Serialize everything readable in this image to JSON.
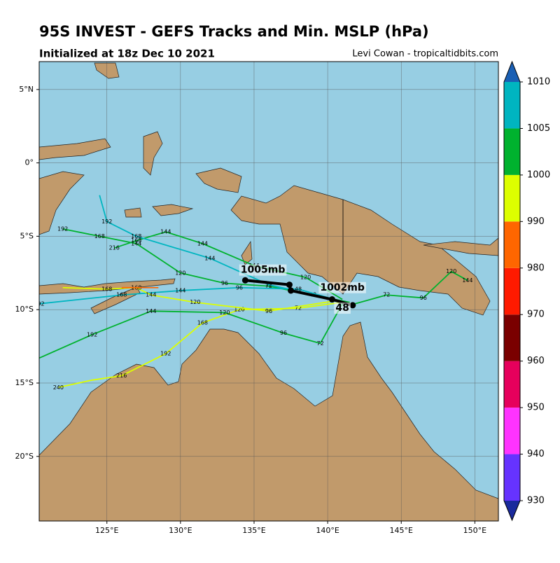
{
  "chart_data": {
    "type": "map",
    "title": "95S INVEST - GEFS Tracks and Min. MSLP (hPa)",
    "subtitle": "Initialized at 18z Dec 10 2021",
    "credit": "Levi Cowan - tropicaltidbits.com",
    "xlim": [
      120.4,
      151.6
    ],
    "ylim": [
      -24.4,
      6.9
    ],
    "xticks": [
      {
        "value": 125,
        "label": "125°E"
      },
      {
        "value": 130,
        "label": "130°E"
      },
      {
        "value": 135,
        "label": "135°E"
      },
      {
        "value": 140,
        "label": "140°E"
      },
      {
        "value": 145,
        "label": "145°E"
      },
      {
        "value": 150,
        "label": "150°E"
      }
    ],
    "yticks": [
      {
        "value": 5,
        "label": "5°N"
      },
      {
        "value": 0,
        "label": "0°"
      },
      {
        "value": -5,
        "label": "5°S"
      },
      {
        "value": -10,
        "label": "10°S"
      },
      {
        "value": -15,
        "label": "15°S"
      },
      {
        "value": -20,
        "label": "20°S"
      }
    ],
    "grid": true,
    "colorbar": {
      "ticks": [
        930,
        940,
        950,
        960,
        970,
        980,
        990,
        1000,
        1005,
        1010
      ],
      "colors": [
        "#6633ff",
        "#ff33ff",
        "#e6005c",
        "#7a0000",
        "#ff1a00",
        "#ff6600",
        "#ddff00",
        "#00b22e",
        "#00b5c0"
      ],
      "extend_colors": [
        "#1a2a9c",
        "#1a5fb4"
      ]
    },
    "series": [
      {
        "color": "#00b22e",
        "x": [
          141.5,
          139,
          136,
          133,
          130,
          127,
          124.5,
          122
        ],
        "values": [
          -9.5,
          -9,
          -8.4,
          -8.2,
          -7.5,
          -5.5,
          -5,
          -4.5
        ],
        "labels": [
          null,
          "48",
          "72",
          "96",
          "120",
          "144",
          "168",
          "192"
        ]
      },
      {
        "color": "#00b5c0",
        "x": [
          141.5,
          138,
          134,
          130,
          126,
          120.4
        ],
        "values": [
          -9.6,
          -8.6,
          -8.5,
          -8.7,
          -9,
          -9.6
        ],
        "labels": [
          null,
          "48",
          "96",
          "144",
          "168",
          "192"
        ]
      },
      {
        "color": "#ddff00",
        "x": [
          141,
          138,
          134,
          131.5,
          129,
          126,
          124,
          121.7
        ],
        "values": [
          -9.5,
          -9.9,
          -10,
          -10.9,
          -13,
          -14.5,
          -14.8,
          -15.3
        ],
        "labels": [
          null,
          "72",
          "120",
          "168",
          "192",
          "216",
          null,
          "240"
        ]
      },
      {
        "color": "#00b22e",
        "x": [
          141,
          139.5,
          137,
          133,
          128,
          124,
          120.4
        ],
        "values": [
          -9.6,
          -12.3,
          -11.6,
          -10.2,
          -10.1,
          -11.7,
          -13.3
        ],
        "labels": [
          null,
          "72",
          "96",
          "120",
          "144",
          "192",
          null
        ]
      },
      {
        "color": "#00b22e",
        "x": [
          141.5,
          144,
          146.5,
          148.4,
          149.5
        ],
        "values": [
          -9.7,
          -9,
          -9.2,
          -7.4,
          -8
        ],
        "labels": [
          null,
          "72",
          "96",
          "120",
          "144"
        ]
      },
      {
        "color": "#00b22e",
        "x": [
          141,
          138.5,
          135,
          131.5,
          129,
          127,
          125.5
        ],
        "values": [
          -9.3,
          -7.8,
          -7,
          -5.5,
          -4.7,
          -5.3,
          -5.8
        ],
        "labels": [
          null,
          "120",
          "144",
          "144",
          "144",
          "168",
          "216"
        ]
      },
      {
        "color": "#00b5c0",
        "x": [
          140,
          136,
          132,
          127,
          125,
          124.5
        ],
        "values": [
          -9.2,
          -8.3,
          -6.5,
          -5,
          -4,
          -2.2
        ],
        "labels": [
          null,
          "72",
          "144",
          "168",
          "192",
          null
        ]
      },
      {
        "color": "#ddff00",
        "x": [
          140.5,
          136,
          131,
          128,
          127,
          125,
          122
        ],
        "values": [
          -9.4,
          -10.1,
          -9.5,
          -9,
          -8.5,
          -8.6,
          -8.5
        ],
        "labels": [
          null,
          "96",
          "120",
          "144",
          "168",
          "168",
          null
        ]
      },
      {
        "color": "#ff6600",
        "x": [
          126,
          128.5
        ],
        "values": [
          -8.5,
          -8.5
        ],
        "labels": [
          null,
          null
        ]
      }
    ],
    "mean_track": {
      "color": "#000000",
      "x": [
        134.4,
        137.4,
        137.5,
        140.3,
        141.7
      ],
      "values": [
        -8.0,
        -8.3,
        -8.7,
        -9.3,
        -9.7
      ]
    },
    "annotations": [
      {
        "text": "1005mb",
        "lon": 135.6,
        "lat": -7.3
      },
      {
        "text": "1002mb",
        "lon": 141,
        "lat": -8.5
      },
      {
        "text": "48",
        "lon": 141,
        "lat": -9.9
      }
    ]
  }
}
